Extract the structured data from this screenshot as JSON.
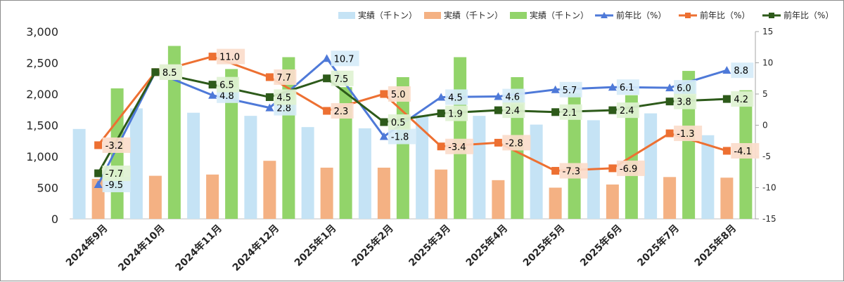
{
  "chart_data": {
    "type": "bar",
    "categories": [
      "2024年9月",
      "2024年10月",
      "2024年11月",
      "2024年12月",
      "2025年1月",
      "2025年2月",
      "2025年3月",
      "2025年4月",
      "2025年5月",
      "2025年6月",
      "2025年7月",
      "2025年8月"
    ],
    "left_axis": {
      "ylim": [
        0,
        3000
      ],
      "ticks": [
        "0",
        "500",
        "1,000",
        "1,500",
        "2,000",
        "2,500",
        "3,000"
      ]
    },
    "right_axis": {
      "ylim": [
        -15,
        15
      ],
      "ticks": [
        "-15",
        "-10",
        "-5",
        "0",
        "5",
        "10",
        "15"
      ]
    },
    "bar_series": [
      {
        "name": "実績（千トン）",
        "color": "#c5e3f5",
        "values": [
          1440,
          1770,
          1700,
          1650,
          1470,
          1450,
          1660,
          1650,
          1510,
          1580,
          1690,
          1340
        ]
      },
      {
        "name": "実績（千トン）",
        "color": "#f4b183",
        "values": [
          640,
          690,
          710,
          930,
          820,
          820,
          790,
          620,
          500,
          550,
          670,
          660
        ]
      },
      {
        "name": "実績（千トン）",
        "color": "#92d46a",
        "values": [
          2090,
          2770,
          2400,
          2590,
          2110,
          2270,
          2590,
          2270,
          2010,
          1980,
          2370,
          2060
        ]
      }
    ],
    "line_series": [
      {
        "name": "前年比（%）",
        "color": "#4e79d8",
        "marker": "triangle",
        "label_bg": "#d6ebf8",
        "values": [
          -9.5,
          8.5,
          4.8,
          2.8,
          10.7,
          -1.8,
          4.5,
          4.6,
          5.7,
          6.1,
          6.0,
          8.8
        ],
        "labels": [
          "-9.5",
          "8.5",
          "4.8",
          "2.8",
          "10.7",
          "-1.8",
          "4.5",
          "4.6",
          "5.7",
          "6.1",
          "6.0",
          "8.8"
        ]
      },
      {
        "name": "前年比（%）",
        "color": "#ed7032",
        "marker": "square",
        "label_bg": "#fbdccb",
        "values": [
          -3.2,
          8.5,
          11.0,
          7.7,
          2.3,
          5.0,
          -3.4,
          -2.8,
          -7.3,
          -6.9,
          -1.3,
          -4.1
        ],
        "labels": [
          "-3.2",
          "8.5",
          "11.0",
          "7.7",
          "2.3",
          "5.0",
          "-3.4",
          "-2.8",
          "-7.3",
          "-6.9",
          "-1.3",
          "-4.1"
        ]
      },
      {
        "name": "前年比（%）",
        "color": "#2d5a1a",
        "marker": "square",
        "label_bg": "#dff2d2",
        "values": [
          -7.7,
          8.5,
          6.5,
          4.5,
          7.5,
          0.5,
          1.9,
          2.4,
          2.1,
          2.4,
          3.8,
          4.2
        ],
        "labels": [
          "-7.7",
          "8.5",
          "6.5",
          "4.5",
          "7.5",
          "0.5",
          "1.9",
          "2.4",
          "2.1",
          "2.4",
          "3.8",
          "4.2"
        ]
      }
    ],
    "legend_position": "top",
    "grid": false
  }
}
